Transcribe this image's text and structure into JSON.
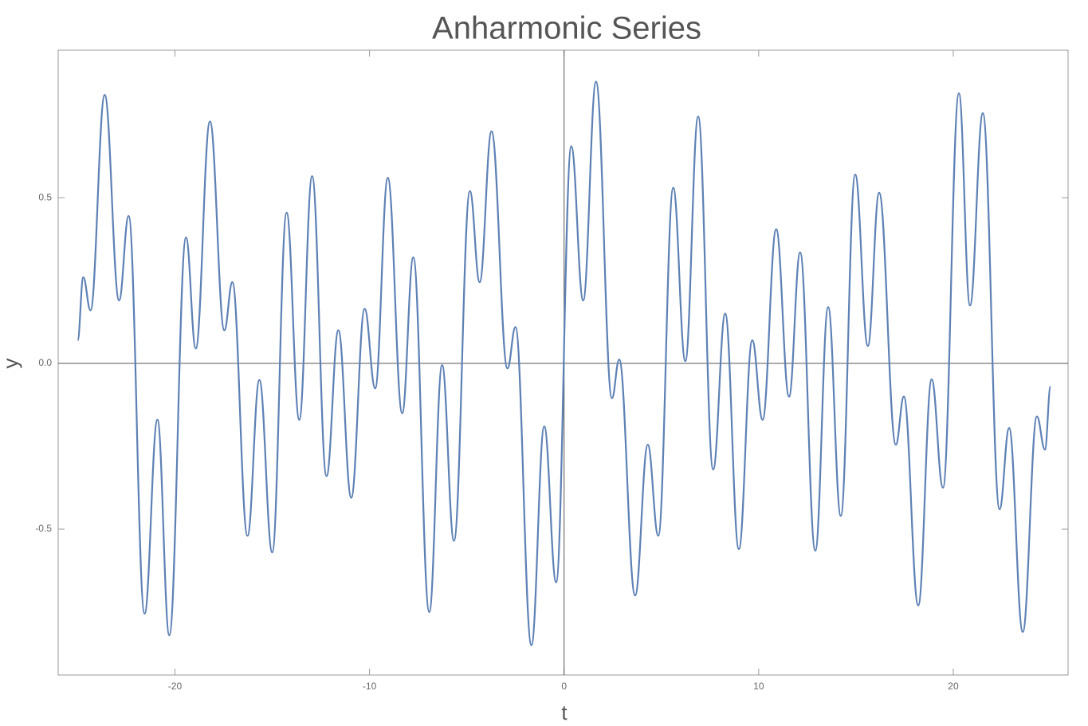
{
  "chart_data": {
    "type": "line",
    "title": "Anharmonic Series",
    "x_label": "t",
    "y_label": "y",
    "series": [
      {
        "color": "#5e81b5",
        "x": [
          -25.0,
          -24.71,
          -24.34,
          -23.61,
          -22.87,
          -22.38,
          -21.56,
          -20.9,
          -20.29,
          -19.43,
          -18.93,
          -18.2,
          -17.46,
          -17.05,
          -16.27,
          -15.66,
          -15.0,
          -14.26,
          -13.61,
          -12.95,
          -12.21,
          -11.6,
          -10.94,
          -10.25,
          -9.71,
          -9.06,
          -8.32,
          -7.75,
          -6.93,
          -6.27,
          -5.66,
          -4.84,
          -4.34,
          -3.73,
          -2.91,
          -2.5,
          -1.68,
          -1.02,
          -0.41,
          0.37,
          0.98,
          1.64,
          2.46,
          2.83,
          3.65,
          4.3,
          4.84,
          5.61,
          6.23,
          6.89,
          7.66,
          8.28,
          8.98,
          9.67,
          10.2,
          10.9,
          11.56,
          12.13,
          12.91,
          13.57,
          14.22,
          14.96,
          15.61,
          16.19,
          17.05,
          17.46,
          18.2,
          18.89,
          19.47,
          20.29,
          20.86,
          21.52,
          22.38,
          22.87,
          23.57,
          24.3,
          24.71,
          25.0
        ],
        "values": [
          0.07,
          0.26,
          0.16,
          0.81,
          0.19,
          0.445,
          -0.755,
          -0.17,
          -0.82,
          0.38,
          0.045,
          0.73,
          0.1,
          0.245,
          -0.52,
          -0.05,
          -0.57,
          0.455,
          -0.17,
          0.565,
          -0.34,
          0.1,
          -0.405,
          0.165,
          -0.075,
          0.56,
          -0.15,
          0.32,
          -0.75,
          -0.005,
          -0.535,
          0.52,
          0.245,
          0.7,
          -0.015,
          0.11,
          -0.85,
          -0.19,
          -0.66,
          0.655,
          0.19,
          0.85,
          -0.105,
          0.012,
          -0.7,
          -0.245,
          -0.52,
          0.53,
          0.007,
          0.745,
          -0.32,
          0.15,
          -0.56,
          0.07,
          -0.17,
          0.405,
          -0.1,
          0.335,
          -0.565,
          0.17,
          -0.46,
          0.57,
          0.053,
          0.515,
          -0.245,
          -0.1,
          -0.73,
          -0.048,
          -0.375,
          0.815,
          0.175,
          0.755,
          -0.44,
          -0.195,
          -0.81,
          -0.16,
          -0.26,
          -0.07
        ]
      }
    ],
    "xlim": [
      -26,
      25.9
    ],
    "ylim": [
      -0.94,
      0.945
    ],
    "xticks": [
      -20,
      -10,
      0,
      10,
      20
    ],
    "yticks": [
      -0.5,
      {
        "value": 0,
        "label": "0.0"
      },
      0.5
    ]
  }
}
